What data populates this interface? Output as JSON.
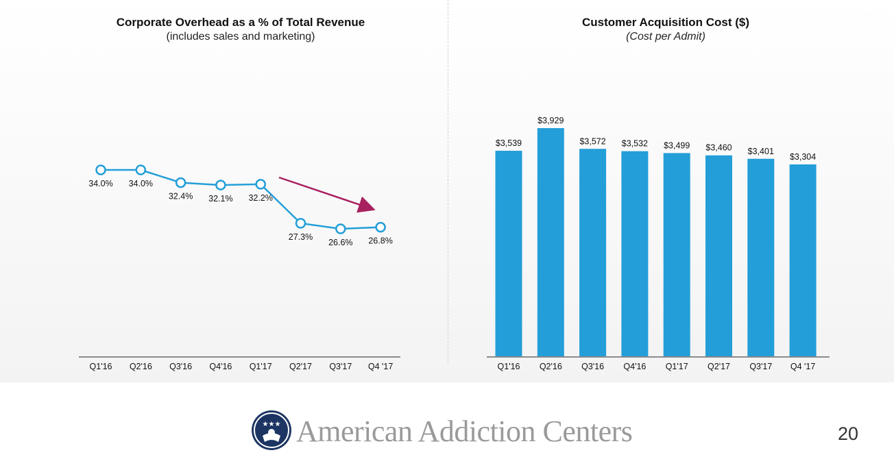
{
  "page": {
    "number": "20",
    "brand": "American Addiction Centers"
  },
  "colors": {
    "series": "#239ed8",
    "trend_arrow": "#a8215f",
    "text": "#111111"
  },
  "chart_data": [
    {
      "type": "line",
      "title": "Corporate Overhead as a % of Total Revenue",
      "subtitle": "(includes sales and marketing)",
      "categories": [
        "Q1'16",
        "Q2'16",
        "Q3'16",
        "Q4'16",
        "Q1'17",
        "Q2'17",
        "Q3'17",
        "Q4 '17"
      ],
      "values": [
        34.0,
        34.0,
        32.4,
        32.1,
        32.2,
        27.3,
        26.6,
        26.8
      ],
      "labels": [
        "34.0%",
        "34.0%",
        "32.4%",
        "32.1%",
        "32.2%",
        "27.3%",
        "26.6%",
        "26.8%"
      ],
      "annotation": {
        "type": "trend-arrow",
        "direction": "down",
        "from_category": "Q1'17",
        "to_category": "Q4 '17"
      },
      "grid": false,
      "legend": "none"
    },
    {
      "type": "bar",
      "title": "Customer Acquisition Cost ($)",
      "subtitle": "(Cost per Admit)",
      "categories": [
        "Q1'16",
        "Q2'16",
        "Q3'16",
        "Q4'16",
        "Q1'17",
        "Q2'17",
        "Q3'17",
        "Q4 '17"
      ],
      "values": [
        3539,
        3929,
        3572,
        3532,
        3499,
        3460,
        3401,
        3304
      ],
      "labels": [
        "$3,539",
        "$3,929",
        "$3,572",
        "$3,532",
        "$3,499",
        "$3,460",
        "$3,401",
        "$3,304"
      ],
      "ylim": [
        0,
        3929
      ],
      "grid": false,
      "legend": "none"
    }
  ]
}
